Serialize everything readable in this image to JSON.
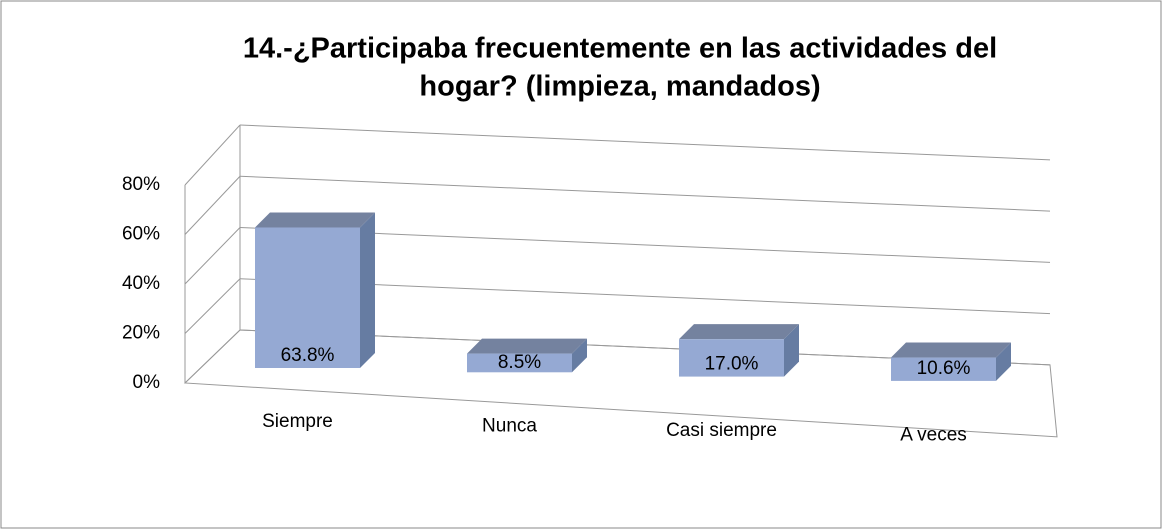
{
  "chart_data": {
    "type": "bar3d",
    "title": [
      "14.-¿Participaba frecuentemente en las actividades del",
      "hogar? (limpieza, mandados)"
    ],
    "categories": [
      "Siempre",
      "Nunca",
      "Casi siempre",
      "A veces"
    ],
    "values": [
      63.8,
      8.5,
      17.0,
      10.6
    ],
    "value_labels": [
      "63.8%",
      "8.5%",
      "17.0%",
      "10.6%"
    ],
    "color": "#95a9d3",
    "ylim": [
      0,
      80
    ],
    "yticks": [
      {
        "value": 0,
        "label": "0%"
      },
      {
        "value": 20,
        "label": "20%"
      },
      {
        "value": 40,
        "label": "40%"
      },
      {
        "value": 60,
        "label": "60%"
      },
      {
        "value": 80,
        "label": "80%"
      }
    ],
    "grid": true
  }
}
